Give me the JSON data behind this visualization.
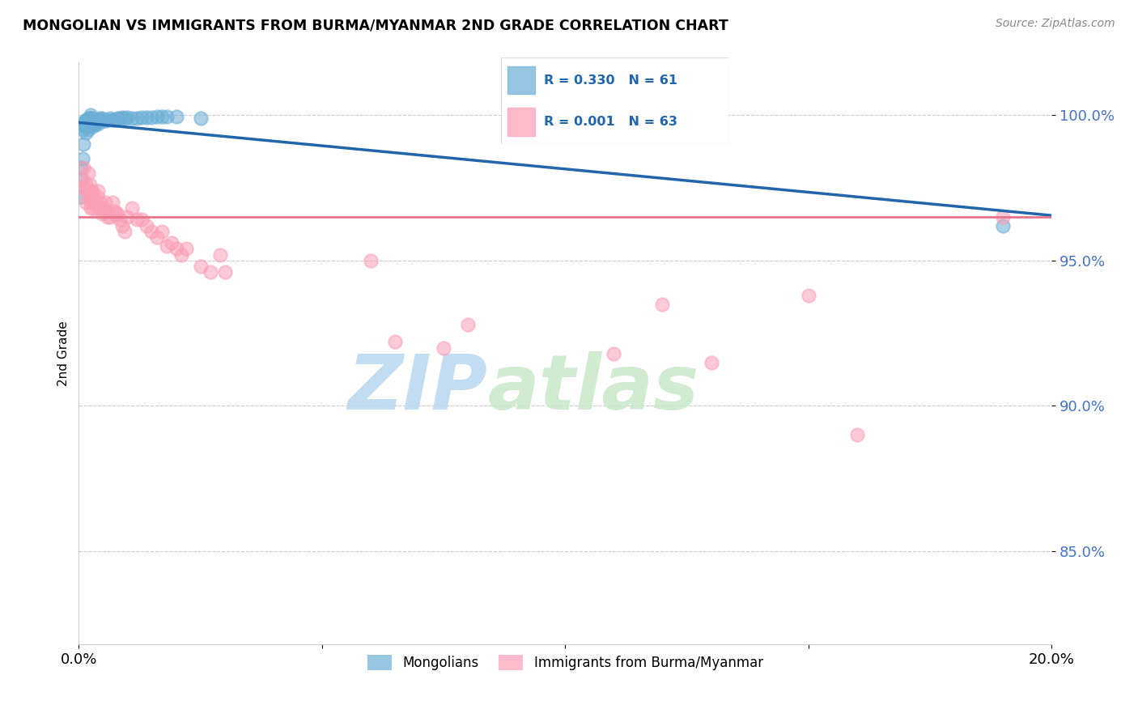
{
  "title": "MONGOLIAN VS IMMIGRANTS FROM BURMA/MYANMAR 2ND GRADE CORRELATION CHART",
  "source": "Source: ZipAtlas.com",
  "ylabel": "2nd Grade",
  "ytick_values": [
    0.85,
    0.9,
    0.95,
    1.0
  ],
  "xlim": [
    0.0,
    0.2
  ],
  "ylim": [
    0.818,
    1.018
  ],
  "blue_color": "#6baed6",
  "pink_color": "#fa9fb5",
  "trend_blue": "#2166ac",
  "trend_pink": "#e8748a",
  "watermark_zip": "ZIP",
  "watermark_atlas": "atlas",
  "legend_label1": "Mongolians",
  "legend_label2": "Immigrants from Burma/Myanmar",
  "blue_x": [
    0.0005,
    0.0005,
    0.0005,
    0.0008,
    0.001,
    0.001,
    0.001,
    0.0012,
    0.0012,
    0.0015,
    0.0015,
    0.0015,
    0.0018,
    0.0018,
    0.002,
    0.002,
    0.002,
    0.002,
    0.002,
    0.0022,
    0.0022,
    0.0025,
    0.0025,
    0.0025,
    0.0025,
    0.0028,
    0.0028,
    0.003,
    0.003,
    0.003,
    0.0032,
    0.0035,
    0.0035,
    0.0038,
    0.004,
    0.004,
    0.0042,
    0.0045,
    0.0048,
    0.005,
    0.0055,
    0.006,
    0.0065,
    0.007,
    0.0075,
    0.008,
    0.0085,
    0.009,
    0.0095,
    0.01,
    0.011,
    0.012,
    0.013,
    0.014,
    0.015,
    0.016,
    0.017,
    0.018,
    0.02,
    0.025,
    0.19
  ],
  "blue_y": [
    0.972,
    0.978,
    0.982,
    0.985,
    0.99,
    0.995,
    0.997,
    0.996,
    0.998,
    0.994,
    0.996,
    0.998,
    0.996,
    0.997,
    0.999,
    0.996,
    0.998,
    0.995,
    0.997,
    0.999,
    0.997,
    1.0,
    0.999,
    0.998,
    0.997,
    0.999,
    0.9985,
    0.998,
    0.997,
    0.996,
    0.997,
    0.998,
    0.997,
    0.998,
    0.998,
    0.997,
    0.999,
    0.9985,
    0.999,
    0.998,
    0.998,
    0.9985,
    0.999,
    0.9985,
    0.9985,
    0.999,
    0.9988,
    0.9992,
    0.999,
    0.9992,
    0.999,
    0.999,
    0.9992,
    0.9993,
    0.9993,
    0.9995,
    0.9994,
    0.9994,
    0.9995,
    0.999,
    0.962
  ],
  "pink_x": [
    0.0005,
    0.0008,
    0.001,
    0.0012,
    0.0015,
    0.0015,
    0.0018,
    0.002,
    0.002,
    0.0022,
    0.0025,
    0.0025,
    0.0025,
    0.0028,
    0.003,
    0.003,
    0.0032,
    0.0035,
    0.0038,
    0.004,
    0.004,
    0.0042,
    0.0045,
    0.0048,
    0.005,
    0.0055,
    0.006,
    0.006,
    0.0065,
    0.007,
    0.0075,
    0.0075,
    0.008,
    0.0085,
    0.009,
    0.0095,
    0.01,
    0.011,
    0.012,
    0.013,
    0.014,
    0.015,
    0.016,
    0.017,
    0.018,
    0.019,
    0.02,
    0.021,
    0.022,
    0.025,
    0.027,
    0.029,
    0.03,
    0.06,
    0.065,
    0.075,
    0.08,
    0.11,
    0.12,
    0.13,
    0.15,
    0.16,
    0.19
  ],
  "pink_y": [
    0.975,
    0.978,
    0.982,
    0.975,
    0.97,
    0.976,
    0.974,
    0.98,
    0.972,
    0.976,
    0.974,
    0.97,
    0.968,
    0.974,
    0.972,
    0.968,
    0.971,
    0.97,
    0.972,
    0.968,
    0.974,
    0.97,
    0.968,
    0.966,
    0.968,
    0.97,
    0.967,
    0.965,
    0.965,
    0.97,
    0.966,
    0.967,
    0.966,
    0.964,
    0.962,
    0.96,
    0.965,
    0.968,
    0.964,
    0.964,
    0.962,
    0.96,
    0.958,
    0.96,
    0.955,
    0.956,
    0.954,
    0.952,
    0.954,
    0.948,
    0.946,
    0.952,
    0.946,
    0.95,
    0.922,
    0.92,
    0.928,
    0.918,
    0.935,
    0.915,
    0.938,
    0.89,
    0.965
  ],
  "pink_trend_y_intercept": 0.965,
  "pink_trend_slope": 0.0
}
